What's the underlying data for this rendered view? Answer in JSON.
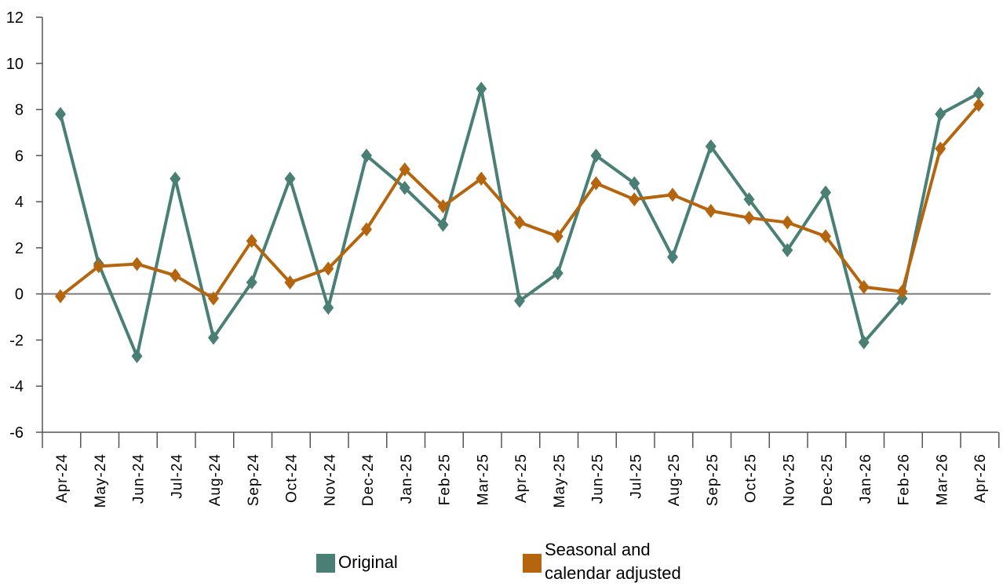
{
  "chart_data": {
    "type": "line",
    "categories": [
      "Apr-24",
      "May-24",
      "Jun-24",
      "Jul-24",
      "Aug-24",
      "Sep-24",
      "Oct-24",
      "Nov-24",
      "Dec-24",
      "Jan-25",
      "Feb-25",
      "Mar-25",
      "Apr-25",
      "May-25",
      "Jun-25",
      "Jul-25",
      "Aug-25",
      "Sep-25",
      "Oct-25",
      "Nov-25",
      "Dec-25",
      "Jan-26",
      "Feb-26",
      "Mar-26",
      "Apr-26"
    ],
    "series": [
      {
        "name": "Original",
        "color": "#4a7f76",
        "values": [
          7.8,
          1.3,
          -2.7,
          5.0,
          -1.9,
          0.5,
          5.0,
          -0.6,
          6.0,
          4.6,
          3.0,
          8.9,
          -0.3,
          0.9,
          6.0,
          4.8,
          1.6,
          6.4,
          4.1,
          1.9,
          4.4,
          -2.1,
          -0.2,
          7.8,
          8.7
        ]
      },
      {
        "name": "Seasonal and calendar adjusted",
        "color": "#b5650e",
        "values": [
          -0.1,
          1.2,
          1.3,
          0.8,
          -0.2,
          2.3,
          0.5,
          1.1,
          2.8,
          5.4,
          3.8,
          5.0,
          3.1,
          2.5,
          4.8,
          4.1,
          4.3,
          3.6,
          3.3,
          3.1,
          2.5,
          0.3,
          0.1,
          6.3,
          8.2
        ]
      }
    ],
    "ylim": [
      -6,
      12
    ],
    "yticks": [
      "-6",
      "-4",
      "-2",
      "0",
      "2",
      "4",
      "6",
      "8",
      "10",
      "12"
    ],
    "legend": {
      "original": "Original",
      "adjusted_line1": "Seasonal and",
      "adjusted_line2": "calendar adjusted"
    },
    "legend_position": "bottom",
    "grid": false
  }
}
